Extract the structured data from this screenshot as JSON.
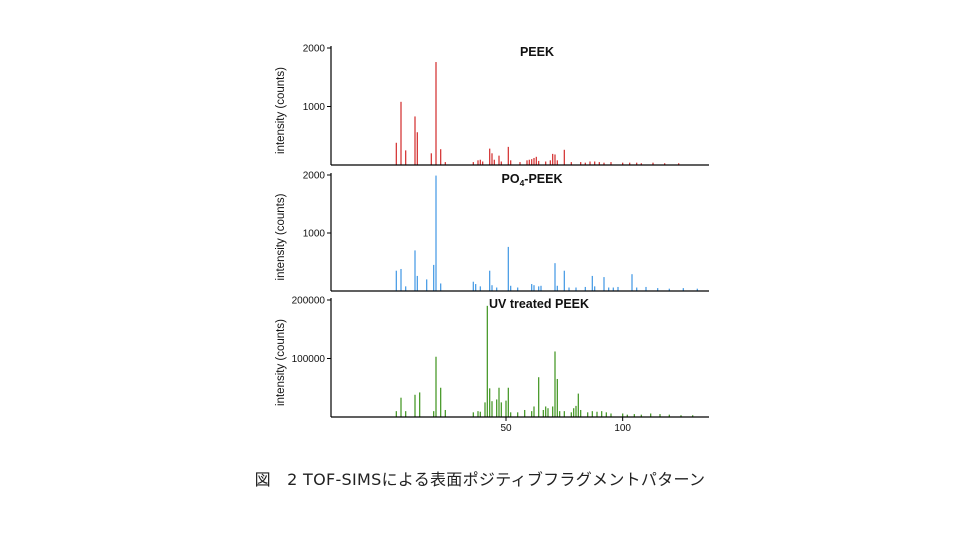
{
  "caption": {
    "prefix": "図",
    "text": "2 TOF-SIMSによる表面ポジティブフラグメントパターン"
  },
  "chart_data": [
    {
      "type": "bar",
      "title": "PEEK",
      "ylabel": "intensity (counts)",
      "yticks": [
        2000,
        1000
      ],
      "ylim": [
        0,
        2000
      ],
      "xlim": [
        -25,
        137
      ],
      "color": "#d63a3a",
      "peaks": [
        [
          3,
          380
        ],
        [
          5,
          1080
        ],
        [
          7,
          250
        ],
        [
          11,
          830
        ],
        [
          12,
          560
        ],
        [
          18,
          200
        ],
        [
          20,
          1760
        ],
        [
          22,
          270
        ],
        [
          24,
          50
        ],
        [
          36,
          50
        ],
        [
          38,
          80
        ],
        [
          39,
          90
        ],
        [
          40,
          60
        ],
        [
          43,
          280
        ],
        [
          44,
          200
        ],
        [
          45,
          90
        ],
        [
          47,
          160
        ],
        [
          48,
          60
        ],
        [
          51,
          310
        ],
        [
          52,
          80
        ],
        [
          56,
          50
        ],
        [
          59,
          80
        ],
        [
          60,
          90
        ],
        [
          61,
          100
        ],
        [
          62,
          120
        ],
        [
          63,
          140
        ],
        [
          64,
          70
        ],
        [
          67,
          60
        ],
        [
          69,
          80
        ],
        [
          70,
          190
        ],
        [
          71,
          180
        ],
        [
          72,
          80
        ],
        [
          75,
          260
        ],
        [
          78,
          50
        ],
        [
          82,
          50
        ],
        [
          84,
          40
        ],
        [
          86,
          60
        ],
        [
          88,
          60
        ],
        [
          90,
          50
        ],
        [
          92,
          40
        ],
        [
          95,
          50
        ],
        [
          100,
          40
        ],
        [
          103,
          40
        ],
        [
          106,
          40
        ],
        [
          108,
          30
        ],
        [
          113,
          40
        ],
        [
          118,
          30
        ],
        [
          124,
          30
        ]
      ]
    },
    {
      "type": "bar",
      "title": "PO4-PEEK",
      "title_main": "PO",
      "title_sub": "4",
      "title_end": "-PEEK",
      "ylabel": "intensity (counts)",
      "yticks": [
        2000,
        1000
      ],
      "ylim": [
        0,
        2000
      ],
      "xlim": [
        -25,
        137
      ],
      "color": "#4d9fe6",
      "peaks": [
        [
          3,
          350
        ],
        [
          5,
          380
        ],
        [
          7,
          80
        ],
        [
          11,
          700
        ],
        [
          12,
          260
        ],
        [
          16,
          200
        ],
        [
          19,
          450
        ],
        [
          20,
          1990
        ],
        [
          22,
          130
        ],
        [
          36,
          160
        ],
        [
          37,
          120
        ],
        [
          39,
          80
        ],
        [
          43,
          350
        ],
        [
          44,
          100
        ],
        [
          46,
          60
        ],
        [
          51,
          760
        ],
        [
          52,
          90
        ],
        [
          55,
          60
        ],
        [
          61,
          120
        ],
        [
          62,
          100
        ],
        [
          64,
          80
        ],
        [
          65,
          90
        ],
        [
          71,
          480
        ],
        [
          72,
          90
        ],
        [
          75,
          350
        ],
        [
          77,
          60
        ],
        [
          80,
          60
        ],
        [
          84,
          70
        ],
        [
          87,
          260
        ],
        [
          88,
          80
        ],
        [
          92,
          240
        ],
        [
          94,
          60
        ],
        [
          96,
          60
        ],
        [
          98,
          70
        ],
        [
          104,
          290
        ],
        [
          106,
          60
        ],
        [
          110,
          70
        ],
        [
          115,
          50
        ],
        [
          120,
          40
        ],
        [
          126,
          50
        ],
        [
          132,
          40
        ]
      ]
    },
    {
      "type": "bar",
      "title": "UV treated PEEK",
      "ylabel": "intensity (counts)",
      "yticks": [
        200000,
        100000
      ],
      "ylim": [
        0,
        200000
      ],
      "xlim": [
        -25,
        137
      ],
      "xticks": [
        50,
        100
      ],
      "color": "#4a9a2c",
      "peaks": [
        [
          3,
          10000
        ],
        [
          5,
          33000
        ],
        [
          7,
          10000
        ],
        [
          11,
          38000
        ],
        [
          13,
          42000
        ],
        [
          19,
          10000
        ],
        [
          20,
          103000
        ],
        [
          22,
          50000
        ],
        [
          24,
          12000
        ],
        [
          36,
          8000
        ],
        [
          38,
          10000
        ],
        [
          39,
          9000
        ],
        [
          41,
          25000
        ],
        [
          42,
          190000
        ],
        [
          43,
          49000
        ],
        [
          44,
          27000
        ],
        [
          46,
          30000
        ],
        [
          47,
          50000
        ],
        [
          48,
          25000
        ],
        [
          50,
          28000
        ],
        [
          51,
          50000
        ],
        [
          52,
          8000
        ],
        [
          55,
          8000
        ],
        [
          58,
          12000
        ],
        [
          61,
          10000
        ],
        [
          62,
          18000
        ],
        [
          64,
          68000
        ],
        [
          66,
          12000
        ],
        [
          67,
          18000
        ],
        [
          68,
          15000
        ],
        [
          70,
          18000
        ],
        [
          71,
          112000
        ],
        [
          72,
          65000
        ],
        [
          73,
          10000
        ],
        [
          75,
          10000
        ],
        [
          78,
          8000
        ],
        [
          79,
          15000
        ],
        [
          80,
          19000
        ],
        [
          81,
          40000
        ],
        [
          82,
          12000
        ],
        [
          85,
          8000
        ],
        [
          87,
          10000
        ],
        [
          89,
          9000
        ],
        [
          91,
          10000
        ],
        [
          93,
          8000
        ],
        [
          95,
          6000
        ],
        [
          100,
          6000
        ],
        [
          102,
          4000
        ],
        [
          105,
          5000
        ],
        [
          108,
          4000
        ],
        [
          112,
          6000
        ],
        [
          116,
          5000
        ],
        [
          120,
          4000
        ],
        [
          125,
          3000
        ],
        [
          130,
          3000
        ]
      ]
    }
  ]
}
